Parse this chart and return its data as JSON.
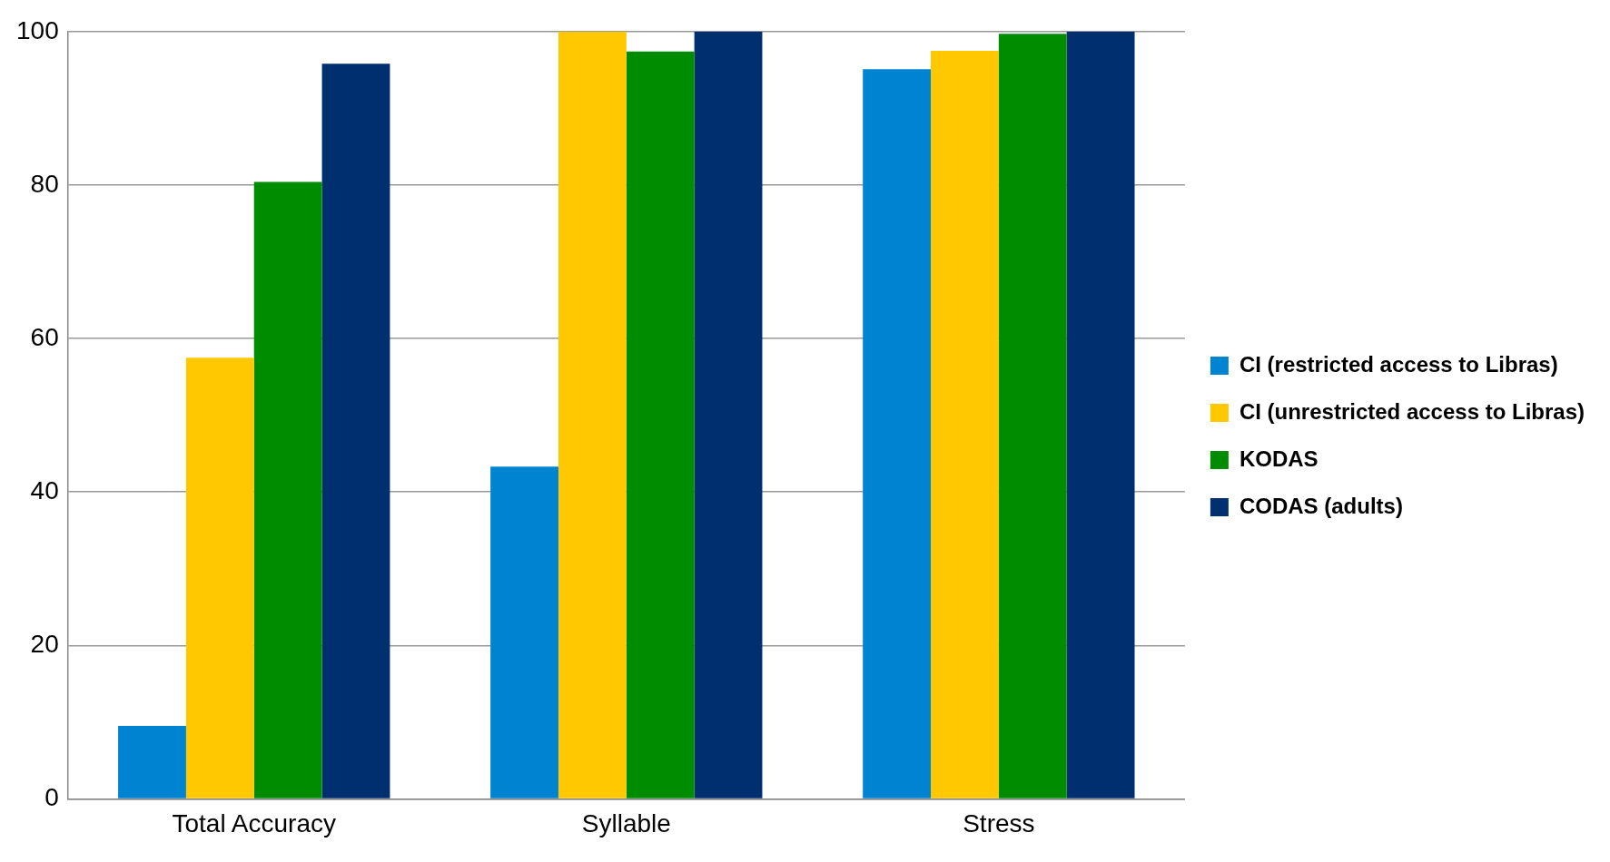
{
  "chart_data": {
    "type": "bar",
    "categories": [
      "Total Accuracy",
      "Syllable",
      "Stress"
    ],
    "series": [
      {
        "name": "CI (restricted access to Libras)",
        "color": "#0084d1",
        "values": [
          9.5,
          43.3,
          95.1
        ]
      },
      {
        "name": "CI (unrestricted access to Libras)",
        "color": "#ffc800",
        "values": [
          57.5,
          100,
          97.5
        ]
      },
      {
        "name": "KODAS",
        "color": "#008c00",
        "values": [
          80.4,
          97.4,
          99.7
        ]
      },
      {
        "name": "CODAS (adults)",
        "color": "#002f6f",
        "values": [
          95.8,
          100,
          100
        ]
      }
    ],
    "ylim": [
      0,
      100
    ],
    "yticks": [
      0,
      20,
      40,
      60,
      80,
      100
    ],
    "grid": "y",
    "legend": "right"
  }
}
